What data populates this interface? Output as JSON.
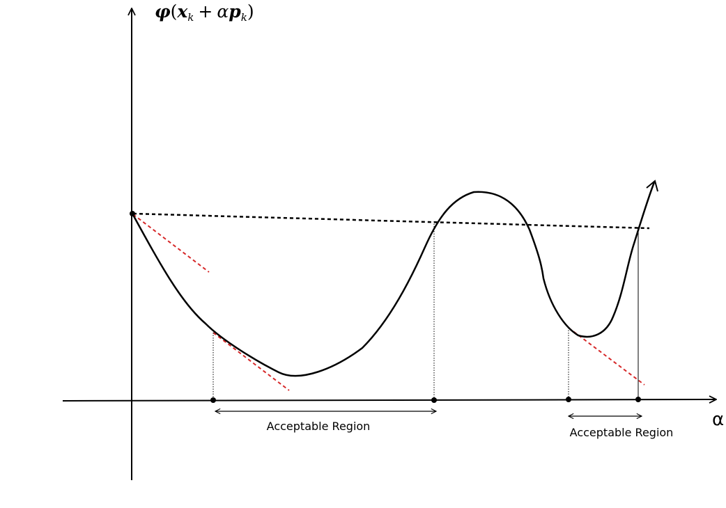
{
  "axes": {
    "y_label": {
      "phi": "φ",
      "open_paren": "(",
      "x": "x",
      "sub_k1": "k",
      "plus": "+",
      "alpha": "α",
      "p": "p",
      "sub_k2": "k",
      "close_paren": ")"
    },
    "x_label": "α"
  },
  "regions": [
    {
      "label": "Acceptable Region"
    },
    {
      "label": "Acceptable Region"
    }
  ],
  "colors": {
    "curve": "#000000",
    "sufficient_decrease_line": "#000000",
    "tangent_lines": "#d62728",
    "axes": "#000000"
  }
}
